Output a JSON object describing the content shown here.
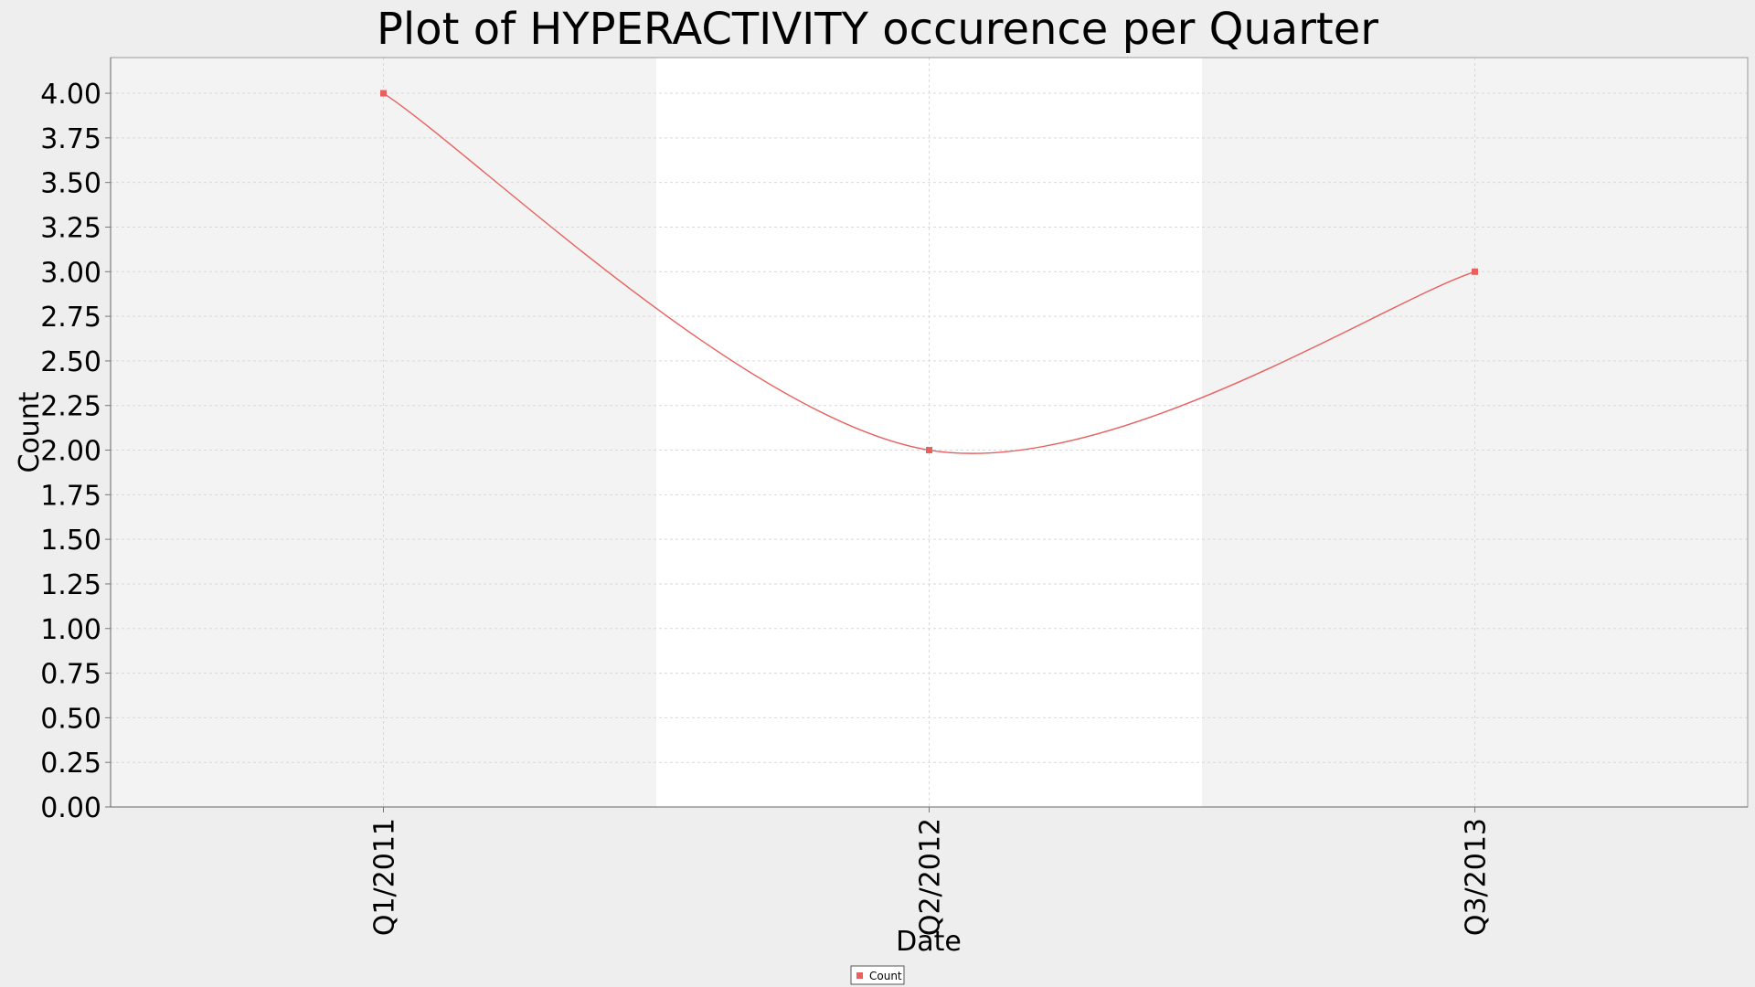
{
  "chart_data": {
    "type": "line",
    "title": "Plot of HYPERACTIVITY occurence per Quarter",
    "xlabel": "Date",
    "ylabel": "Count",
    "categories": [
      "Q1/2011",
      "Q2/2012",
      "Q3/2013"
    ],
    "series": [
      {
        "name": "Count",
        "values": [
          4.0,
          2.0,
          3.0
        ]
      }
    ],
    "ylim": [
      0,
      4.2
    ],
    "yticks": [
      "0.00",
      "0.25",
      "0.50",
      "0.75",
      "1.00",
      "1.25",
      "1.50",
      "1.75",
      "2.00",
      "2.25",
      "2.50",
      "2.75",
      "3.00",
      "3.25",
      "3.50",
      "3.75",
      "4.00"
    ],
    "grid": true,
    "legend": "bottom-center",
    "colors": {
      "series": "#e8615f",
      "plot_band_light": "#f3f3f3",
      "plot_band_white": "#ffffff",
      "grid": "#d9d9d9",
      "background": "#eeeeee"
    }
  }
}
